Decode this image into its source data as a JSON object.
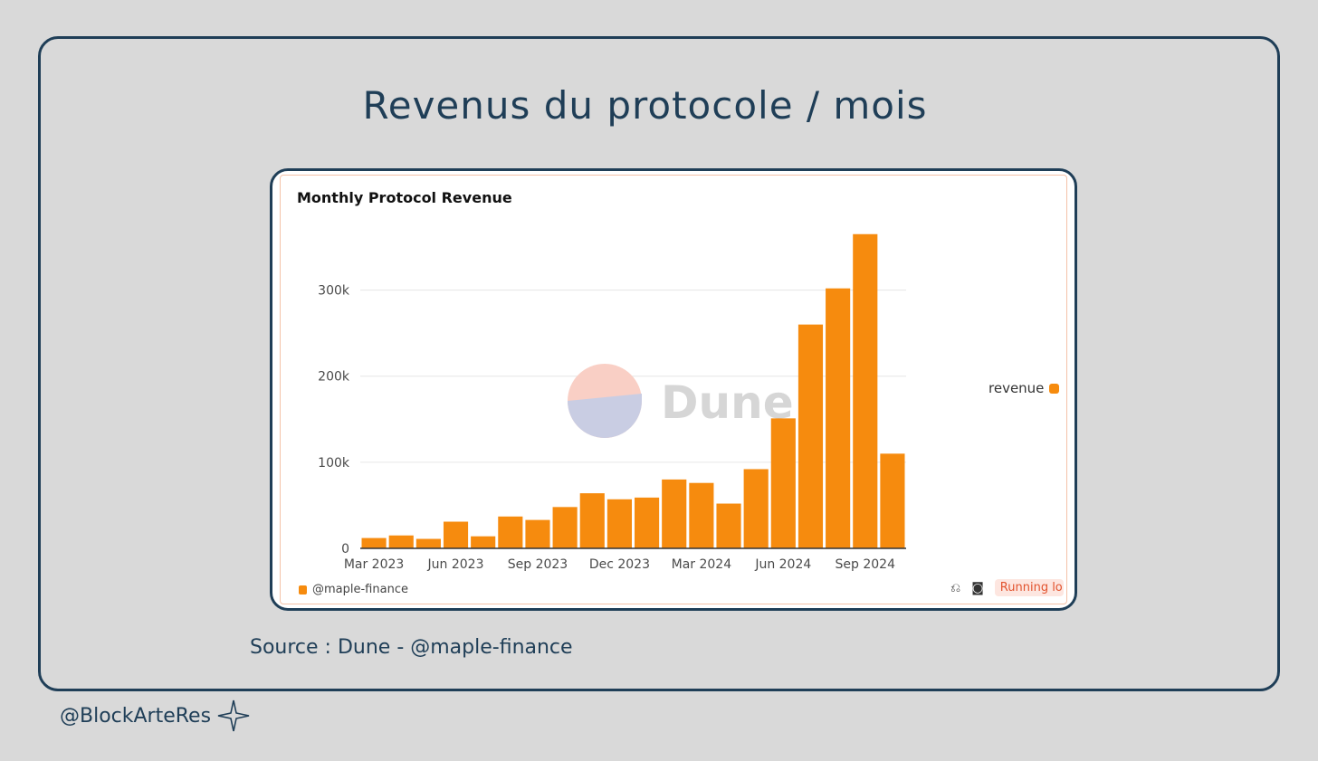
{
  "slide": {
    "title": "Revenus du protocole / mois",
    "source": "Source : Dune - @maple-finance",
    "handle": "@BlockArteRes",
    "handle_icon": "sparkle-icon"
  },
  "card": {
    "author": "@maple-finance",
    "author_icon": "query-icon",
    "status": "Running lo",
    "watermark": "Dune"
  },
  "colors": {
    "bar": "#f68b0e",
    "frame": "#1f3e57",
    "watermark_top": "#f9cfc5",
    "watermark_bottom": "#c9cde3"
  },
  "chart_data": {
    "type": "bar",
    "title": "Monthly Protocol Revenue",
    "xlabel": "",
    "ylabel": "",
    "ylim": [
      0,
      370000
    ],
    "yticks": [
      0,
      100000,
      200000,
      300000
    ],
    "ytick_labels": [
      "0",
      "100k",
      "200k",
      "300k"
    ],
    "categories": [
      "Mar 2023",
      "Apr 2023",
      "May 2023",
      "Jun 2023",
      "Jul 2023",
      "Aug 2023",
      "Sep 2023",
      "Oct 2023",
      "Nov 2023",
      "Dec 2023",
      "Jan 2024",
      "Feb 2024",
      "Mar 2024",
      "Apr 2024",
      "May 2024",
      "Jun 2024",
      "Jul 2024",
      "Aug 2024",
      "Sep 2024",
      "Oct 2024"
    ],
    "xtick_labels": [
      {
        "index": 0,
        "label": "Mar 2023"
      },
      {
        "index": 3,
        "label": "Jun 2023"
      },
      {
        "index": 6,
        "label": "Sep 2023"
      },
      {
        "index": 9,
        "label": "Dec 2023"
      },
      {
        "index": 12,
        "label": "Mar 2024"
      },
      {
        "index": 15,
        "label": "Jun 2024"
      },
      {
        "index": 18,
        "label": "Sep 2024"
      }
    ],
    "series": [
      {
        "name": "revenue",
        "values": [
          12000,
          15000,
          11000,
          31000,
          14000,
          37000,
          33000,
          48000,
          64000,
          57000,
          59000,
          80000,
          76000,
          52000,
          92000,
          151000,
          260000,
          302000,
          365000,
          110000
        ]
      }
    ],
    "grid": true,
    "legend_position": "right"
  }
}
